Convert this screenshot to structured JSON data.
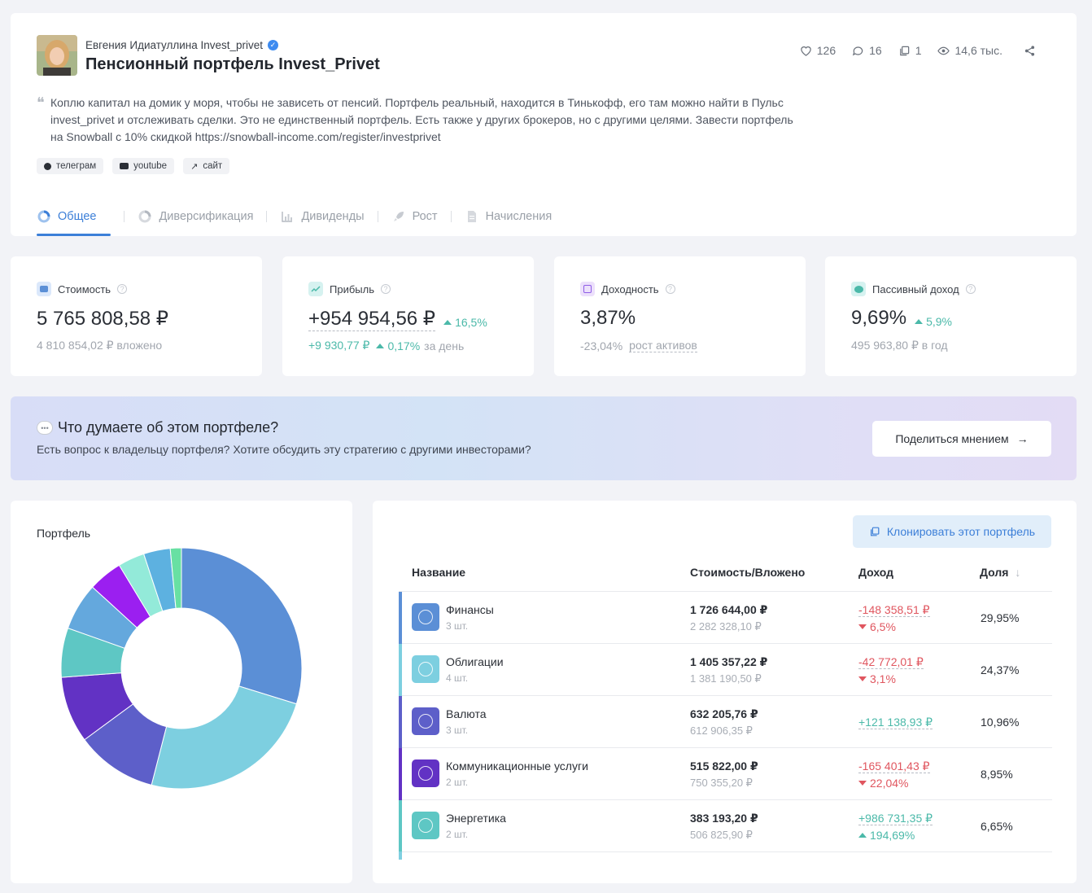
{
  "header": {
    "author": "Евгения Идиатуллина Invest_privet",
    "title": "Пенсионный портфель Invest_Privet",
    "stats": {
      "likes": "126",
      "comments": "16",
      "copies": "1",
      "views": "14,6 тыс."
    },
    "description": "Коплю капитал на домик у моря, чтобы не зависеть от пенсий. Портфель реальный, находится в Тинькофф, его там можно найти в Пульс invest_privet и отслеживать сделки. Это не единственный портфель. Есть также у других брокеров, но с другими целями. Завести портфель на Snowball с 10% скидкой https://snowball-income.com/register/investprivet",
    "links": [
      "телеграм",
      "youtube",
      "сайт"
    ],
    "tabs": [
      "Общее",
      "Диверсификация",
      "Дивиденды",
      "Рост",
      "Начисления"
    ]
  },
  "metrics": {
    "value": {
      "label": "Стоимость",
      "amount": "5 765 808,58 ₽",
      "sub": "4 810 854,02 ₽ вложено"
    },
    "profit": {
      "label": "Прибыль",
      "amount": "+954 954,56 ₽",
      "change": "16,5%",
      "day_amount": "+9 930,77 ₽",
      "day_pct": "0,17%",
      "day_label": "за день"
    },
    "yield": {
      "label": "Доходность",
      "amount": "3,87%",
      "sub_pct": "-23,04%",
      "sub_label": "рост активов"
    },
    "passive": {
      "label": "Пассивный доход",
      "amount": "9,69%",
      "change": "5,9%",
      "sub": "495 963,80 ₽ в год"
    }
  },
  "banner": {
    "title": "Что думаете об этом портфеле?",
    "subtitle": "Есть вопрос к владельцу портфеля? Хотите обсудить эту стратегию с другими инвесторами?",
    "button": "Поделиться мнением"
  },
  "portfolio": {
    "title": "Портфель",
    "clone_button": "Клонировать этот портфель",
    "columns": [
      "Название",
      "Стоимость/Вложено",
      "Доход",
      "Доля"
    ],
    "rows": [
      {
        "name": "Финансы",
        "count": "3 шт.",
        "value": "1 726 644,00 ₽",
        "invested": "2 282 328,10 ₽",
        "income": "-148 358,51 ₽",
        "income_pct": "6,5%",
        "direction": "down",
        "share": "29,95%",
        "color": "#5b8fd6"
      },
      {
        "name": "Облигации",
        "count": "4 шт.",
        "value": "1 405 357,22 ₽",
        "invested": "1 381 190,50 ₽",
        "income": "-42 772,01 ₽",
        "income_pct": "3,1%",
        "direction": "down",
        "share": "24,37%",
        "color": "#7dcfe0"
      },
      {
        "name": "Валюта",
        "count": "3 шт.",
        "value": "632 205,76 ₽",
        "invested": "612 906,35 ₽",
        "income": "+121 138,93 ₽",
        "income_pct": "",
        "direction": "none",
        "share": "10,96%",
        "color": "#5d5fc9"
      },
      {
        "name": "Коммуникационные услуги",
        "count": "2 шт.",
        "value": "515 822,00 ₽",
        "invested": "750 355,20 ₽",
        "income": "-165 401,43 ₽",
        "income_pct": "22,04%",
        "direction": "down",
        "share": "8,95%",
        "color": "#6232c4"
      },
      {
        "name": "Энергетика",
        "count": "2 шт.",
        "value": "383 193,20 ₽",
        "invested": "506 825,90 ₽",
        "income": "+986 731,35 ₽",
        "income_pct": "194,69%",
        "direction": "up",
        "share": "6,65%",
        "color": "#5ec7c4"
      }
    ]
  },
  "chart_data": {
    "type": "pie",
    "values": [
      29.95,
      24.37,
      10.96,
      8.95,
      6.65,
      6.4,
      4.6,
      3.6,
      3.6,
      1.5
    ],
    "colors": [
      "#5b8fd6",
      "#7dcfe0",
      "#5d5fc9",
      "#6232c4",
      "#5ec7c4",
      "#64a8dd",
      "#9b1ff0",
      "#93ead9",
      "#5db1e0",
      "#68e0a3"
    ]
  }
}
